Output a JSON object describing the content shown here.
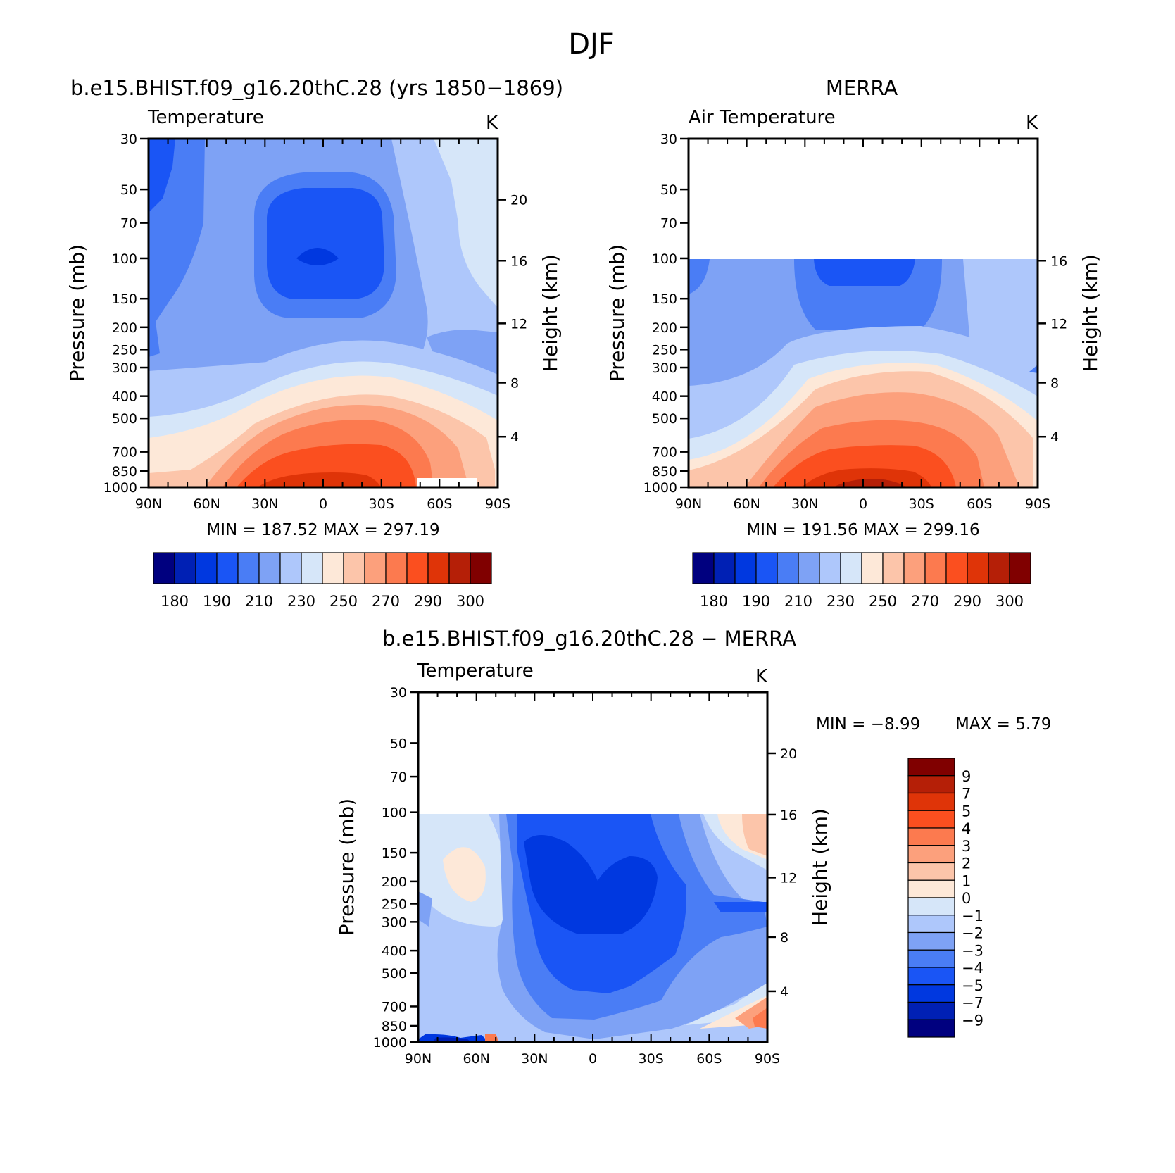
{
  "figure": {
    "title": "DJF"
  },
  "palette_abs": [
    "#00007f",
    "#0020b4",
    "#0038e0",
    "#1a55f5",
    "#4a7df5",
    "#7ea2f5",
    "#aec7fb",
    "#d6e6f9",
    "#fde8d8",
    "#fcc5aa",
    "#fca07c",
    "#fc7a4f",
    "#fb4f1f",
    "#df3408",
    "#b51f07",
    "#800000"
  ],
  "palette_diff": [
    "#00007f",
    "#0020b4",
    "#0038e0",
    "#1a55f5",
    "#4a7df5",
    "#7ea2f5",
    "#aec7fb",
    "#d6e6f9",
    "#fde8d8",
    "#fcc5aa",
    "#fca07c",
    "#fc7a4f",
    "#fb4f1f",
    "#df3408",
    "#b51f07",
    "#800000"
  ],
  "panels": [
    {
      "title": "b.e15.BHIST.f09_g16.20thC.28 (yrs 1850−1869)",
      "variable": "Temperature",
      "units": "K",
      "stats": "MIN = 187.52   MAX = 297.19",
      "left_axis_label": "Pressure (mb)",
      "right_axis_label": "Height (km)",
      "pressure_ticks": [
        "30",
        "50",
        "70",
        "100",
        "150",
        "200",
        "250",
        "300",
        "400",
        "500",
        "700",
        "850",
        "1000"
      ],
      "height_ticks": [
        "20",
        "16",
        "12",
        "8",
        "4"
      ],
      "lat_ticks": [
        "90N",
        "60N",
        "30N",
        "0",
        "30S",
        "60S",
        "90S"
      ],
      "colorbar_labels": [
        "180",
        "190",
        "210",
        "230",
        "250",
        "270",
        "290",
        "300"
      ]
    },
    {
      "title": "MERRA",
      "variable": "Air Temperature",
      "units": "K",
      "stats": "MIN = 191.56   MAX = 299.16",
      "left_axis_label": "Pressure (mb)",
      "right_axis_label": "Height (km)",
      "pressure_ticks": [
        "30",
        "50",
        "70",
        "100",
        "150",
        "200",
        "250",
        "300",
        "400",
        "500",
        "700",
        "850",
        "1000"
      ],
      "height_ticks": [
        "16",
        "12",
        "8",
        "4"
      ],
      "lat_ticks": [
        "90N",
        "60N",
        "30N",
        "0",
        "30S",
        "60S",
        "90S"
      ],
      "colorbar_labels": [
        "180",
        "190",
        "210",
        "230",
        "250",
        "270",
        "290",
        "300"
      ]
    },
    {
      "title": "b.e15.BHIST.f09_g16.20thC.28 − MERRA",
      "variable": "Temperature",
      "units": "K",
      "stats_min": "MIN =   −8.99",
      "stats_max": "MAX =     5.79",
      "left_axis_label": "Pressure (mb)",
      "right_axis_label": "Height (km)",
      "pressure_ticks": [
        "30",
        "50",
        "70",
        "100",
        "150",
        "200",
        "250",
        "300",
        "400",
        "500",
        "700",
        "850",
        "1000"
      ],
      "height_ticks": [
        "20",
        "16",
        "12",
        "8",
        "4"
      ],
      "lat_ticks": [
        "90N",
        "60N",
        "30N",
        "0",
        "30S",
        "60S",
        "90S"
      ],
      "colorbar_labels": [
        "9",
        "7",
        "5",
        "4",
        "3",
        "2",
        "1",
        "0",
        "−1",
        "−2",
        "−3",
        "−4",
        "−5",
        "−7",
        "−9"
      ]
    }
  ],
  "chart_data": [
    {
      "type": "heatmap",
      "title": "b.e15.BHIST.f09_g16.20thC.28 (yrs 1850−1869)",
      "subtitle": "Temperature",
      "units": "K",
      "xlabel": "",
      "ylabel": "Pressure (mb)",
      "y2label": "Height (km)",
      "x": [
        "90N",
        "60N",
        "30N",
        "0",
        "30S",
        "60S",
        "90S"
      ],
      "ylim": [
        1000,
        30
      ],
      "y_scale": "log",
      "min": 187.52,
      "max": 297.19,
      "levels": [
        180,
        185,
        190,
        200,
        210,
        220,
        230,
        240,
        250,
        260,
        270,
        280,
        290,
        295,
        300
      ],
      "lat_range": [
        90,
        -90
      ]
    },
    {
      "type": "heatmap",
      "title": "MERRA",
      "subtitle": "Air Temperature",
      "units": "K",
      "xlabel": "",
      "ylabel": "Pressure (mb)",
      "y2label": "Height (km)",
      "x": [
        "90N",
        "60N",
        "30N",
        "0",
        "30S",
        "60S",
        "90S"
      ],
      "ylim": [
        1000,
        30
      ],
      "y_scale": "log",
      "data_top_pressure": 100,
      "min": 191.56,
      "max": 299.16,
      "levels": [
        180,
        185,
        190,
        200,
        210,
        220,
        230,
        240,
        250,
        260,
        270,
        280,
        290,
        295,
        300
      ],
      "lat_range": [
        90,
        -90
      ]
    },
    {
      "type": "heatmap",
      "title": "b.e15.BHIST.f09_g16.20thC.28 − MERRA",
      "subtitle": "Temperature",
      "units": "K",
      "xlabel": "",
      "ylabel": "Pressure (mb)",
      "y2label": "Height (km)",
      "x": [
        "90N",
        "60N",
        "30N",
        "0",
        "30S",
        "60S",
        "90S"
      ],
      "ylim": [
        1000,
        30
      ],
      "y_scale": "log",
      "data_top_pressure": 100,
      "min": -8.99,
      "max": 5.79,
      "levels": [
        -9,
        -7,
        -5,
        -4,
        -3,
        -2,
        -1,
        0,
        1,
        2,
        3,
        4,
        5,
        7,
        9
      ],
      "lat_range": [
        90,
        -90
      ]
    }
  ]
}
